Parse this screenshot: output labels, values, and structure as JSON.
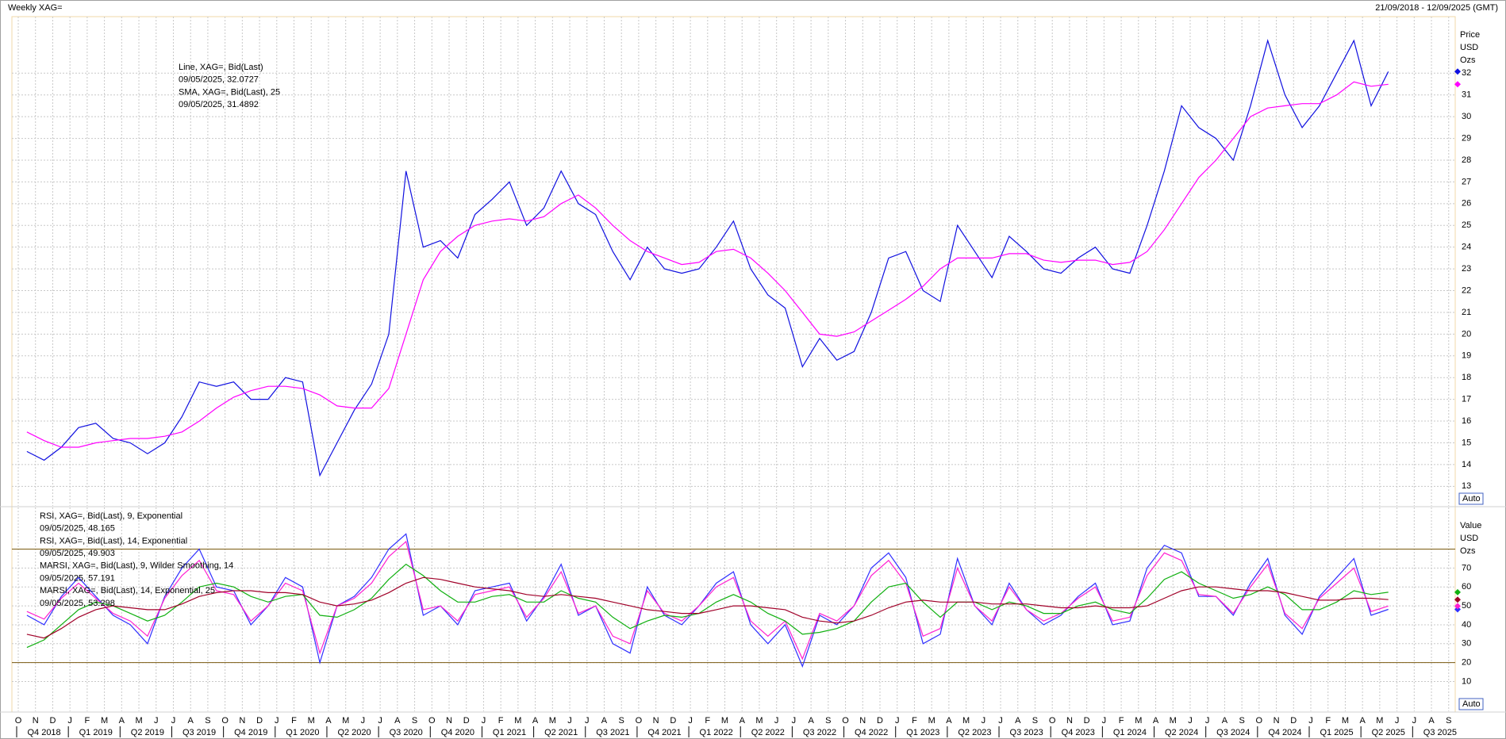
{
  "header": {
    "title": "Weekly XAG=",
    "range": "21/09/2018 - 12/09/2025 (GMT)"
  },
  "chart_data": [
    {
      "type": "line",
      "categories": [
        "O",
        "N",
        "D",
        "J",
        "F",
        "M",
        "A",
        "M",
        "J",
        "J",
        "A",
        "S",
        "O",
        "N",
        "D",
        "J",
        "F",
        "M",
        "A",
        "M",
        "J",
        "J",
        "A",
        "S",
        "O",
        "N",
        "D",
        "J",
        "F",
        "M",
        "A",
        "M",
        "J",
        "J",
        "A",
        "S",
        "O",
        "N",
        "D",
        "J",
        "F",
        "M",
        "A",
        "M",
        "J",
        "J",
        "A",
        "S",
        "O",
        "N",
        "D",
        "J",
        "F",
        "M",
        "A",
        "M",
        "J",
        "J",
        "A",
        "S",
        "O",
        "N",
        "D",
        "J",
        "F",
        "M",
        "A",
        "M",
        "J",
        "J",
        "A",
        "S",
        "O",
        "N",
        "D",
        "J",
        "F",
        "M",
        "A",
        "M",
        "J",
        "J",
        "A",
        "S"
      ],
      "quarters": [
        "Q4 2018",
        "Q1 2019",
        "Q2 2019",
        "Q3 2019",
        "Q4 2019",
        "Q1 2020",
        "Q2 2020",
        "Q3 2020",
        "Q4 2020",
        "Q1 2021",
        "Q2 2021",
        "Q3 2021",
        "Q4 2021",
        "Q1 2022",
        "Q2 2022",
        "Q3 2022",
        "Q4 2022",
        "Q1 2023",
        "Q2 2023",
        "Q3 2023",
        "Q4 2023",
        "Q1 2024",
        "Q2 2024",
        "Q3 2024",
        "Q4 2024",
        "Q1 2025",
        "Q2 2025",
        "Q3 2025"
      ],
      "series": [
        {
          "name": "Line, XAG=, Bid(Last)",
          "label": "09/05/2025, 32.0727",
          "color": "#1010e0",
          "values": [
            14.6,
            14.2,
            14.8,
            15.7,
            15.9,
            15.2,
            15.0,
            14.5,
            15.0,
            16.2,
            17.8,
            17.6,
            17.8,
            17.0,
            17.0,
            18.0,
            17.8,
            13.5,
            15.0,
            16.5,
            17.7,
            20.0,
            27.5,
            24.0,
            24.3,
            23.5,
            25.5,
            26.2,
            27.0,
            25.0,
            25.8,
            27.5,
            26.0,
            25.5,
            23.8,
            22.5,
            24.0,
            23.0,
            22.8,
            23.0,
            24.0,
            25.2,
            23.0,
            21.8,
            21.2,
            18.5,
            19.8,
            18.8,
            19.2,
            21.0,
            23.5,
            23.8,
            22.0,
            21.5,
            25.0,
            23.8,
            22.6,
            24.5,
            23.8,
            23.0,
            22.8,
            23.5,
            24.0,
            23.0,
            22.8,
            25.0,
            27.5,
            30.5,
            29.5,
            29.0,
            28.0,
            30.5,
            33.5,
            31.0,
            29.5,
            30.5,
            32.0,
            33.5,
            30.5,
            32.0727,
            null,
            null,
            null,
            null
          ]
        },
        {
          "name": "SMA, XAG=, Bid(Last), 25",
          "label": "09/05/2025, 31.4892",
          "color": "#ff00ff",
          "values": [
            15.5,
            15.1,
            14.8,
            14.8,
            15.0,
            15.1,
            15.2,
            15.2,
            15.3,
            15.5,
            16.0,
            16.6,
            17.1,
            17.4,
            17.6,
            17.6,
            17.5,
            17.2,
            16.7,
            16.6,
            16.6,
            17.5,
            20.0,
            22.5,
            23.8,
            24.5,
            25.0,
            25.2,
            25.3,
            25.2,
            25.4,
            26.0,
            26.4,
            25.8,
            25.0,
            24.3,
            23.8,
            23.5,
            23.2,
            23.3,
            23.8,
            23.9,
            23.5,
            22.8,
            22.0,
            21.0,
            20.0,
            19.9,
            20.1,
            20.6,
            21.1,
            21.6,
            22.2,
            23.0,
            23.5,
            23.5,
            23.5,
            23.7,
            23.7,
            23.4,
            23.3,
            23.4,
            23.4,
            23.2,
            23.3,
            23.8,
            24.8,
            26.0,
            27.2,
            28.0,
            29.0,
            30.0,
            30.4,
            30.5,
            30.6,
            30.6,
            31.0,
            31.6,
            31.4,
            31.4892,
            null,
            null,
            null,
            null
          ]
        }
      ],
      "ylim": [
        12.1,
        34.6
      ],
      "yticks": [
        13,
        14,
        15,
        16,
        17,
        18,
        19,
        20,
        21,
        22,
        23,
        24,
        25,
        26,
        27,
        28,
        29,
        30,
        31,
        32
      ],
      "axis_labels": [
        "Price",
        "USD",
        "Ozs"
      ],
      "button": "Auto",
      "grid": true
    },
    {
      "type": "line",
      "series": [
        {
          "name": "RSI, XAG=, Bid(Last),  9, Exponential",
          "label": "09/05/2025, 48.165",
          "color": "#3030ff",
          "values": [
            45,
            40,
            55,
            65,
            55,
            45,
            40,
            30,
            55,
            70,
            80,
            60,
            58,
            40,
            50,
            65,
            60,
            20,
            50,
            55,
            65,
            80,
            88,
            45,
            50,
            40,
            58,
            60,
            62,
            42,
            55,
            72,
            45,
            50,
            30,
            25,
            60,
            45,
            40,
            50,
            62,
            68,
            40,
            30,
            40,
            18,
            45,
            40,
            50,
            70,
            78,
            65,
            30,
            35,
            75,
            50,
            40,
            62,
            48,
            40,
            45,
            55,
            62,
            40,
            42,
            70,
            82,
            78,
            55,
            55,
            45,
            62,
            75,
            45,
            35,
            55,
            65,
            75,
            45,
            48.165,
            null,
            null,
            null,
            null
          ]
        },
        {
          "name": "RSI, XAG=, Bid(Last),  14, Exponential",
          "label": "09/05/2025, 49.903",
          "color": "#ff20d0",
          "values": [
            47,
            43,
            54,
            62,
            54,
            46,
            42,
            34,
            54,
            66,
            74,
            58,
            56,
            42,
            50,
            62,
            58,
            25,
            50,
            54,
            62,
            76,
            84,
            48,
            50,
            42,
            56,
            58,
            60,
            44,
            54,
            68,
            46,
            50,
            34,
            30,
            58,
            46,
            42,
            50,
            60,
            65,
            42,
            34,
            42,
            22,
            46,
            42,
            50,
            66,
            74,
            62,
            34,
            38,
            70,
            50,
            42,
            60,
            48,
            42,
            46,
            54,
            60,
            42,
            44,
            66,
            78,
            74,
            56,
            55,
            46,
            60,
            72,
            46,
            38,
            54,
            62,
            70,
            47,
            49.903,
            null,
            null,
            null,
            null
          ]
        },
        {
          "name": "MARSI, XAG=, Bid(Last),  9, Wilder Smoothing, 14",
          "label": "09/05/2025, 57.191",
          "color": "#10b010",
          "values": [
            28,
            32,
            40,
            48,
            52,
            50,
            46,
            42,
            45,
            52,
            60,
            62,
            60,
            55,
            52,
            55,
            56,
            45,
            44,
            48,
            54,
            64,
            72,
            66,
            58,
            52,
            52,
            55,
            56,
            52,
            52,
            58,
            54,
            52,
            44,
            38,
            42,
            45,
            44,
            46,
            52,
            56,
            52,
            46,
            42,
            35,
            36,
            38,
            42,
            52,
            60,
            62,
            52,
            44,
            52,
            52,
            48,
            52,
            50,
            46,
            46,
            50,
            52,
            48,
            46,
            54,
            64,
            68,
            62,
            58,
            54,
            56,
            60,
            56,
            48,
            48,
            52,
            58,
            56,
            57.191,
            null,
            null,
            null,
            null
          ]
        },
        {
          "name": "MARSI, XAG=, Bid(Last),  14, Exponential, 25",
          "label": "09/05/2025, 53.298",
          "color": "#a00028",
          "values": [
            35,
            33,
            38,
            44,
            48,
            50,
            49,
            48,
            48,
            51,
            55,
            57,
            58,
            58,
            57,
            57,
            56,
            52,
            50,
            51,
            53,
            57,
            62,
            65,
            64,
            62,
            60,
            59,
            58,
            56,
            55,
            56,
            55,
            54,
            52,
            50,
            48,
            47,
            46,
            46,
            48,
            50,
            50,
            49,
            48,
            44,
            42,
            41,
            42,
            45,
            49,
            52,
            53,
            52,
            52,
            52,
            51,
            51,
            51,
            50,
            49,
            49,
            50,
            49,
            49,
            50,
            54,
            58,
            60,
            60,
            59,
            58,
            58,
            57,
            55,
            53,
            53,
            54,
            54,
            53.298,
            null,
            null,
            null,
            null
          ]
        }
      ],
      "levels": [
        80,
        20
      ],
      "level_color": "#7a5a10",
      "ylim": [
        -5.7,
        102
      ],
      "yticks": [
        10,
        20,
        30,
        40,
        50,
        60,
        70
      ],
      "axis_labels": [
        "Value",
        "USD",
        "Ozs"
      ],
      "button": "Auto",
      "grid": true
    }
  ]
}
